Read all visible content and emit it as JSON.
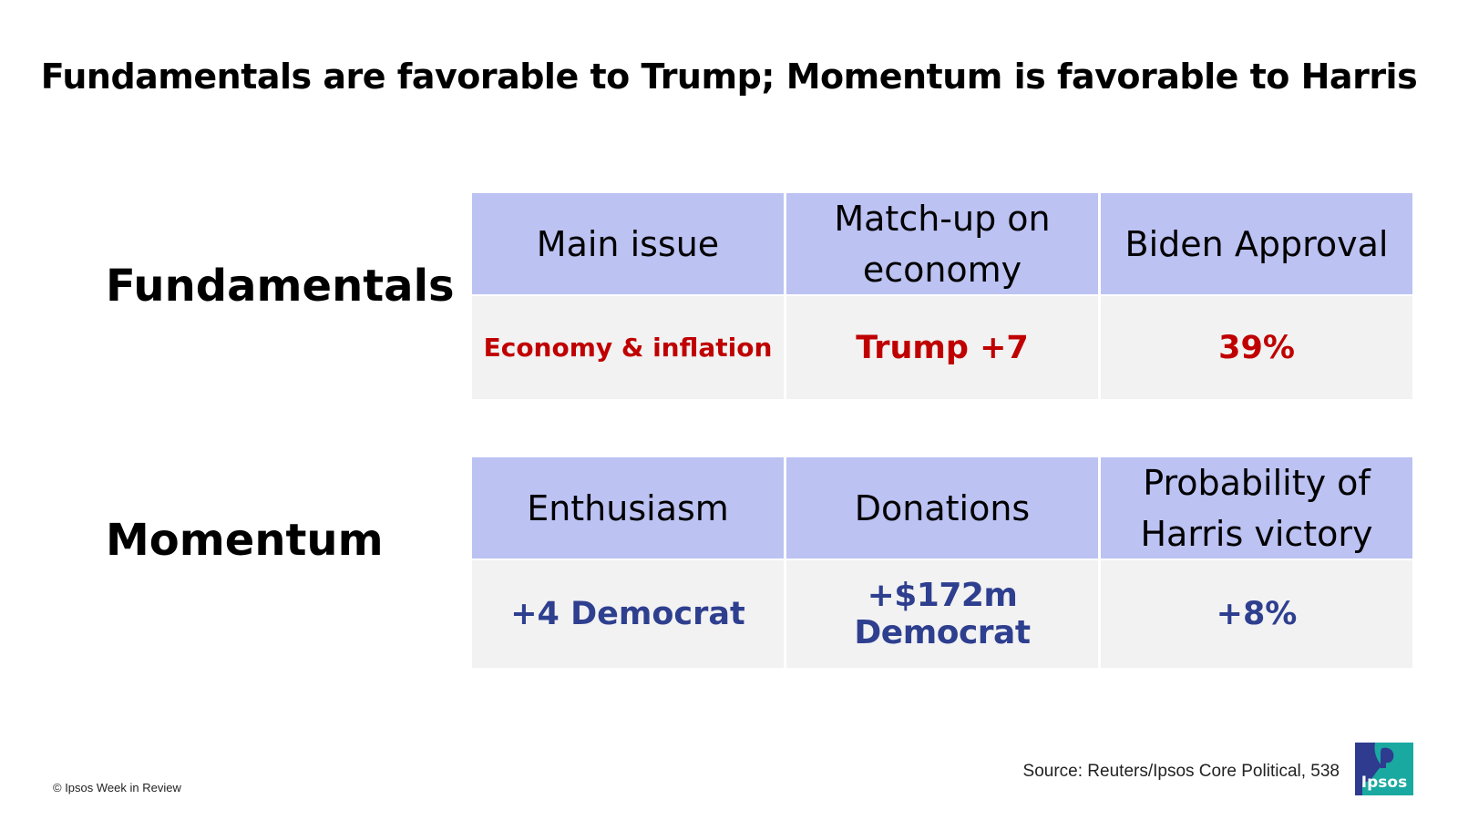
{
  "title": "Fundamentals are favorable to Trump; Momentum is favorable to Harris",
  "fundamentals": {
    "label": "Fundamentals",
    "headers": [
      "Main issue",
      "Match-up on economy",
      "Biden Approval"
    ],
    "values": [
      "Economy & inflation",
      "Trump +7",
      "39%"
    ]
  },
  "momentum": {
    "label": "Momentum",
    "headers": [
      "Enthusiasm",
      "Donations",
      "Probability of Harris victory"
    ],
    "values": [
      "+4 Democrat",
      "+$172m Democrat",
      "+8%"
    ]
  },
  "colors": {
    "header_bg": "#bcc2f2",
    "value_bg": "#f2f2f2",
    "fundamentals_value": "#c00000",
    "momentum_value": "#2e3f8f",
    "logo_teal": "#1aa9a1",
    "logo_navy": "#2e3b8f"
  },
  "footer": {
    "copyright": "© Ipsos Week in Review",
    "source": "Source: Reuters/Ipsos Core Political, 538",
    "logo_text": "Ipsos"
  }
}
